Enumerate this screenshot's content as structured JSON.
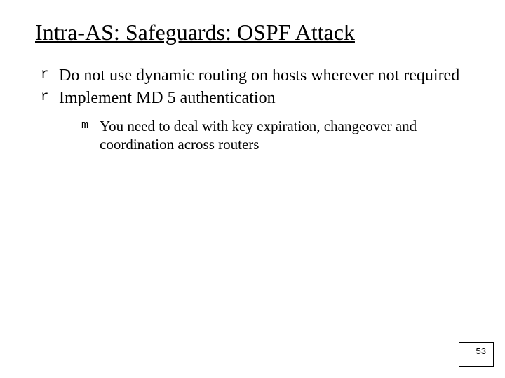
{
  "title": "Intra-AS: Safeguards: OSPF Attack",
  "bullets": {
    "b0": "Do not use dynamic routing on hosts wherever not required",
    "b1": "Implement MD 5 authentication",
    "b1_sub0": "You need to deal with key expiration, changeover and coordination across routers"
  },
  "page_number": "53"
}
